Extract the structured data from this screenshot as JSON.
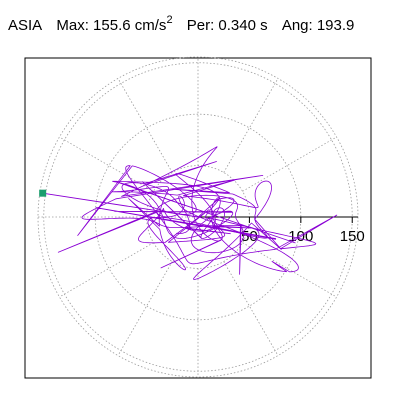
{
  "header": {
    "station": "ASIA",
    "max_label": "Max:",
    "max_value": "155.6",
    "max_unit": "cm/s",
    "max_unit_exp": "2",
    "per_label": "Per:",
    "per_value": "0.340",
    "per_unit": "s",
    "ang_label": "Ang:",
    "ang_value": "193.9"
  },
  "chart_data": {
    "type": "line",
    "coordinate_system": "polar",
    "title": "ASIA  Max: 155.6 cm/s2  Per: 0.340 s  Ang: 193.9",
    "radial_ticks": [
      50,
      100,
      150
    ],
    "radial_tick_labels": [
      "50",
      "100",
      "150"
    ],
    "radial_range": [
      0,
      155.6
    ],
    "angular_gridlines_deg": [
      0,
      30,
      60,
      90,
      120,
      150,
      180,
      210,
      240,
      270,
      300,
      330
    ],
    "grid": true,
    "peak": {
      "amplitude": 155.6,
      "angle_deg": 193.9,
      "period_s": 0.34
    },
    "colors": {
      "trace": "#8a00d4",
      "peak_marker": "#1a9e6e",
      "grid": "#9a9a9a",
      "axis": "#000000"
    },
    "series": [
      {
        "x": [
          0,
          12,
          35,
          -28,
          60,
          -75,
          40,
          90,
          -110,
          70,
          -40,
          150,
          -130,
          20,
          80,
          -60,
          105,
          -90,
          45,
          -151
        ],
        "y": [
          0,
          8,
          -18,
          30,
          -12,
          20,
          40,
          -35,
          10,
          45,
          -55,
          2,
          -20,
          60,
          -48,
          38,
          -28,
          6,
          -62,
          -38
        ]
      }
    ]
  }
}
